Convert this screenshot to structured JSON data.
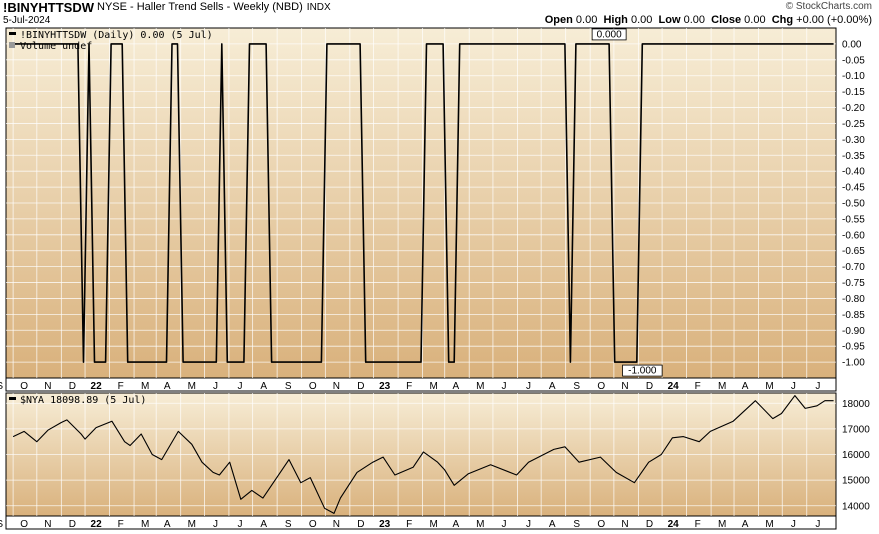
{
  "header": {
    "symbol": "!BINYHTTSDW",
    "description": "NYSE - Haller Trend Sells - Weekly (NBD)",
    "exchange": "INDX",
    "date": "5-Jul-2024",
    "credit": "© StockCharts.com",
    "ohlc": [
      {
        "label": "Open",
        "value": "0.00"
      },
      {
        "label": "High",
        "value": "0.00"
      },
      {
        "label": "Low",
        "value": "0.00"
      },
      {
        "label": "Close",
        "value": "0.00"
      },
      {
        "label": "Chg",
        "value": "+0.00 (+0.00%)"
      }
    ]
  },
  "colors": {
    "bg_top": "#f7edd6",
    "bg_bottom": "#d9b17c",
    "line": "#000000",
    "grid": "#ffffff"
  },
  "chart_data": [
    {
      "type": "line",
      "legend": "!BINYHTTSDW (Daily) 0.00 (5 Jul)",
      "legend2": "Volume undef",
      "ylim": [
        -1.05,
        0.05
      ],
      "yticks": [
        "0.00",
        "-0.05",
        "-0.10",
        "-0.15",
        "-0.20",
        "-0.25",
        "-0.30",
        "-0.35",
        "-0.40",
        "-0.45",
        "-0.50",
        "-0.55",
        "-0.60",
        "-0.65",
        "-0.70",
        "-0.75",
        "-0.80",
        "-0.85",
        "-0.90",
        "-0.95",
        "-1.00"
      ],
      "xticks": [
        "S",
        "O",
        "N",
        "D",
        "22",
        "F",
        "M",
        "A",
        "M",
        "J",
        "J",
        "A",
        "S",
        "O",
        "N",
        "D",
        "23",
        "F",
        "M",
        "A",
        "M",
        "J",
        "J",
        "A",
        "S",
        "O",
        "N",
        "D",
        "24",
        "F",
        "M",
        "A",
        "M",
        "J",
        "J"
      ],
      "x_start": "2021-08-23",
      "x_end": "2024-07-08",
      "points": [
        [
          "2021-08-30",
          0
        ],
        [
          "2021-11-22",
          0
        ],
        [
          "2021-11-29",
          -1
        ],
        [
          "2021-12-06",
          0
        ],
        [
          "2021-12-13",
          -1
        ],
        [
          "2021-12-27",
          -1
        ],
        [
          "2022-01-03",
          0
        ],
        [
          "2022-01-17",
          0
        ],
        [
          "2022-01-24",
          -1
        ],
        [
          "2022-03-14",
          -1
        ],
        [
          "2022-03-21",
          0
        ],
        [
          "2022-03-28",
          0
        ],
        [
          "2022-04-04",
          -1
        ],
        [
          "2022-05-16",
          -1
        ],
        [
          "2022-05-23",
          0
        ],
        [
          "2022-05-30",
          -1
        ],
        [
          "2022-06-20",
          -1
        ],
        [
          "2022-06-27",
          0
        ],
        [
          "2022-07-18",
          0
        ],
        [
          "2022-07-25",
          -1
        ],
        [
          "2022-09-26",
          -1
        ],
        [
          "2022-10-03",
          0
        ],
        [
          "2022-11-14",
          0
        ],
        [
          "2022-11-21",
          -1
        ],
        [
          "2023-01-30",
          -1
        ],
        [
          "2023-02-06",
          0
        ],
        [
          "2023-02-27",
          0
        ],
        [
          "2023-03-06",
          -1
        ],
        [
          "2023-03-13",
          -1
        ],
        [
          "2023-03-20",
          0
        ],
        [
          "2023-07-31",
          0
        ],
        [
          "2023-08-07",
          -1
        ],
        [
          "2023-08-14",
          0
        ],
        [
          "2023-09-25",
          0
        ],
        [
          "2023-10-02",
          -1
        ],
        [
          "2023-10-30",
          -1
        ],
        [
          "2023-11-06",
          0
        ],
        [
          "2024-07-05",
          0
        ]
      ],
      "annotations": [
        {
          "text": "0.000",
          "x": "2023-09-25",
          "y": 0
        },
        {
          "text": "-1.000",
          "x": "2023-11-06",
          "y": -1
        }
      ]
    },
    {
      "type": "line",
      "legend": "$NYA 18098.89 (5 Jul)",
      "ylim": [
        13600,
        18400
      ],
      "yticks": [
        "18000",
        "17000",
        "16000",
        "15000",
        "14000"
      ],
      "ytick_values": [
        18000,
        17000,
        16000,
        15000,
        14000
      ],
      "xticks": [
        "S",
        "O",
        "N",
        "D",
        "22",
        "F",
        "M",
        "A",
        "M",
        "J",
        "J",
        "A",
        "S",
        "O",
        "N",
        "D",
        "23",
        "F",
        "M",
        "A",
        "M",
        "J",
        "J",
        "A",
        "S",
        "O",
        "N",
        "D",
        "24",
        "F",
        "M",
        "A",
        "M",
        "J",
        "J"
      ],
      "x_start": "2021-08-23",
      "x_end": "2024-07-08",
      "points": [
        [
          "2021-09-01",
          16700
        ],
        [
          "2021-09-15",
          16900
        ],
        [
          "2021-10-01",
          16500
        ],
        [
          "2021-10-15",
          16950
        ],
        [
          "2021-11-01",
          17250
        ],
        [
          "2021-11-08",
          17350
        ],
        [
          "2021-11-26",
          16800
        ],
        [
          "2021-12-01",
          16600
        ],
        [
          "2021-12-15",
          17050
        ],
        [
          "2022-01-04",
          17300
        ],
        [
          "2022-01-20",
          16500
        ],
        [
          "2022-01-27",
          16350
        ],
        [
          "2022-02-10",
          16800
        ],
        [
          "2022-02-24",
          16000
        ],
        [
          "2022-03-08",
          15800
        ],
        [
          "2022-03-29",
          16900
        ],
        [
          "2022-04-15",
          16400
        ],
        [
          "2022-04-28",
          15700
        ],
        [
          "2022-05-12",
          15300
        ],
        [
          "2022-05-20",
          15200
        ],
        [
          "2022-06-02",
          15700
        ],
        [
          "2022-06-16",
          14250
        ],
        [
          "2022-06-30",
          14600
        ],
        [
          "2022-07-14",
          14300
        ],
        [
          "2022-08-16",
          15800
        ],
        [
          "2022-08-31",
          14900
        ],
        [
          "2022-09-12",
          15100
        ],
        [
          "2022-09-30",
          13900
        ],
        [
          "2022-10-12",
          13700
        ],
        [
          "2022-10-20",
          14300
        ],
        [
          "2022-11-10",
          15300
        ],
        [
          "2022-11-30",
          15700
        ],
        [
          "2022-12-13",
          15900
        ],
        [
          "2022-12-28",
          15200
        ],
        [
          "2023-01-20",
          15500
        ],
        [
          "2023-02-02",
          16100
        ],
        [
          "2023-02-20",
          15700
        ],
        [
          "2023-03-01",
          15400
        ],
        [
          "2023-03-13",
          14800
        ],
        [
          "2023-03-31",
          15250
        ],
        [
          "2023-04-28",
          15600
        ],
        [
          "2023-05-31",
          15200
        ],
        [
          "2023-06-15",
          15700
        ],
        [
          "2023-07-17",
          16200
        ],
        [
          "2023-07-31",
          16300
        ],
        [
          "2023-08-18",
          15700
        ],
        [
          "2023-09-14",
          15900
        ],
        [
          "2023-10-04",
          15300
        ],
        [
          "2023-10-27",
          14900
        ],
        [
          "2023-11-14",
          15700
        ],
        [
          "2023-11-30",
          16000
        ],
        [
          "2023-12-14",
          16650
        ],
        [
          "2023-12-28",
          16700
        ],
        [
          "2024-01-17",
          16500
        ],
        [
          "2024-01-31",
          16900
        ],
        [
          "2024-02-29",
          17300
        ],
        [
          "2024-03-28",
          18100
        ],
        [
          "2024-04-19",
          17400
        ],
        [
          "2024-04-30",
          17600
        ],
        [
          "2024-05-17",
          18300
        ],
        [
          "2024-05-30",
          17800
        ],
        [
          "2024-06-14",
          17900
        ],
        [
          "2024-06-24",
          18100
        ],
        [
          "2024-07-05",
          18098.89
        ]
      ]
    }
  ]
}
